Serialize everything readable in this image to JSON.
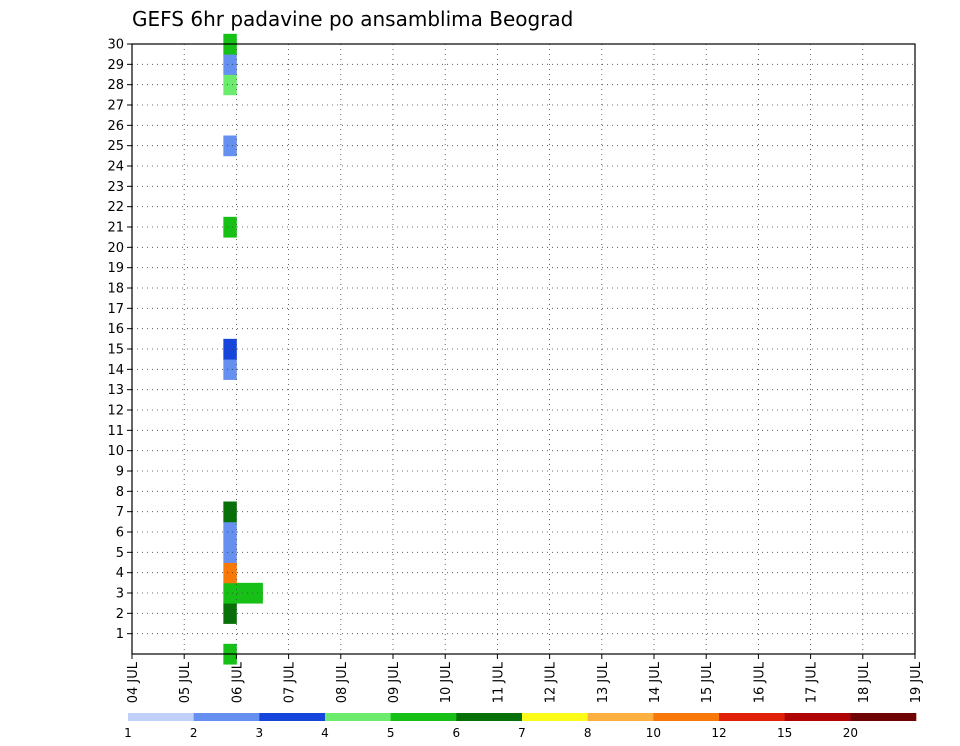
{
  "chart_data": {
    "type": "heatmap",
    "title": "GEFS 6hr padavine po ansamblima Beograd",
    "x_tick_labels": [
      "04 JUL",
      "05 JUL",
      "06 JUL",
      "07 JUL",
      "08 JUL",
      "09 JUL",
      "10 JUL",
      "11 JUL",
      "12 JUL",
      "13 JUL",
      "14 JUL",
      "15 JUL",
      "16 JUL",
      "17 JUL",
      "18 JUL",
      "19 JUL"
    ],
    "x_range": [
      0,
      60
    ],
    "y_tick_labels": [
      "1",
      "2",
      "3",
      "4",
      "5",
      "6",
      "7",
      "8",
      "9",
      "10",
      "11",
      "12",
      "13",
      "14",
      "15",
      "16",
      "17",
      "18",
      "19",
      "20",
      "21",
      "22",
      "23",
      "24",
      "25",
      "26",
      "27",
      "28",
      "29",
      "30"
    ],
    "y_range": [
      0,
      30
    ],
    "grid": true,
    "colorbar": {
      "placement": "bottom",
      "colors": [
        "#c0d0f8",
        "#6590f0",
        "#1645dc",
        "#6cec6c",
        "#16c016",
        "#087008",
        "#fcfc18",
        "#fcb040",
        "#f87808",
        "#e02008",
        "#b00404",
        "#700404"
      ],
      "labels": [
        "1",
        "2",
        "3",
        "4",
        "5",
        "6",
        "7",
        "8",
        "10",
        "12",
        "15",
        "20"
      ]
    },
    "cells": [
      [
        7.5,
        0,
        "#16c016"
      ],
      [
        7.5,
        2,
        "#087008"
      ],
      [
        7.5,
        3,
        "#16c016"
      ],
      [
        8.5,
        3,
        "#16c016"
      ],
      [
        9.5,
        3,
        "#16c016"
      ],
      [
        7.5,
        4,
        "#f87808"
      ],
      [
        7.5,
        5,
        "#6590f0"
      ],
      [
        7.5,
        6,
        "#6590f0"
      ],
      [
        7.5,
        7,
        "#087008"
      ],
      [
        7.5,
        14,
        "#6590f0"
      ],
      [
        7.5,
        15,
        "#1645dc"
      ],
      [
        7.5,
        21,
        "#16c016"
      ],
      [
        7.5,
        25,
        "#6590f0"
      ],
      [
        7.5,
        28,
        "#6cec6c"
      ],
      [
        7.5,
        29,
        "#6590f0"
      ],
      [
        7.5,
        30,
        "#16c016"
      ]
    ]
  }
}
